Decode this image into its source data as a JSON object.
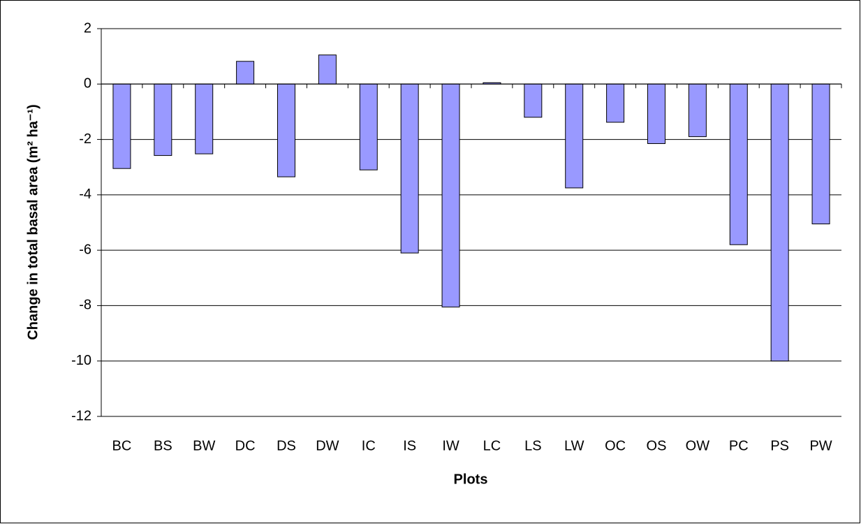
{
  "chart_data": {
    "type": "bar",
    "xlabel": "Plots",
    "ylabel": "Change in total basal area (m² ha⁻¹)",
    "categories": [
      "BC",
      "BS",
      "BW",
      "DC",
      "DS",
      "DW",
      "IC",
      "IS",
      "IW",
      "LC",
      "LS",
      "LW",
      "OC",
      "OS",
      "OW",
      "PC",
      "PS",
      "PW"
    ],
    "values": [
      -3.05,
      -2.58,
      -2.52,
      0.82,
      -3.35,
      1.05,
      -3.1,
      -6.1,
      -8.05,
      0.05,
      -1.2,
      -3.75,
      -1.38,
      -2.15,
      -1.9,
      -5.8,
      -10,
      -5.05
    ],
    "color": "#9999ff",
    "ylim": [
      -12,
      2
    ],
    "yticks": [
      -12,
      -10,
      -8,
      -6,
      -4,
      -2,
      0,
      2
    ],
    "grid": true
  }
}
